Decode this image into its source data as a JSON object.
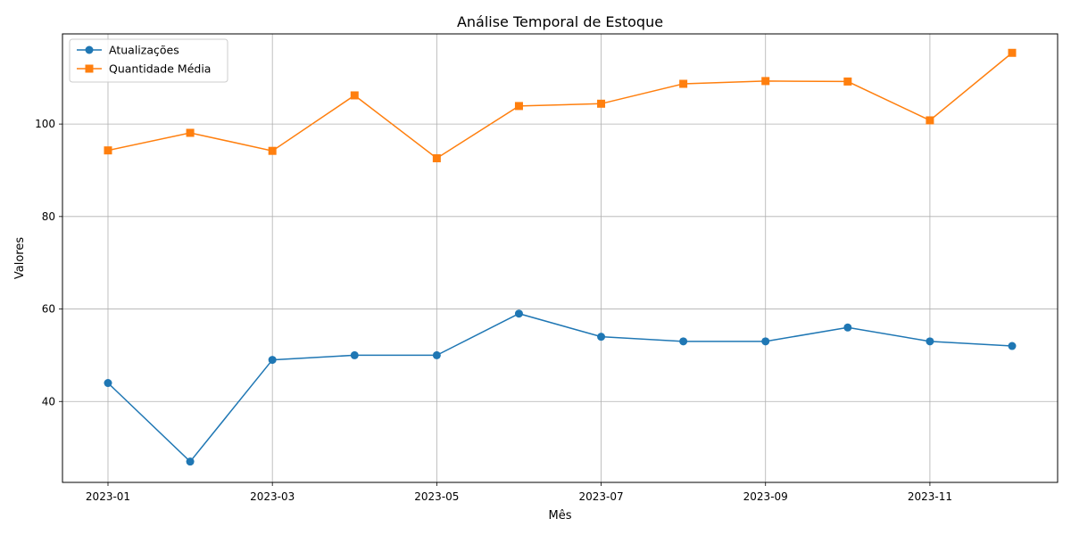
{
  "chart_data": {
    "type": "line",
    "title": "Análise Temporal de Estoque",
    "xlabel": "Mês",
    "ylabel": "Valores",
    "x": [
      "2023-01",
      "2023-02",
      "2023-03",
      "2023-04",
      "2023-05",
      "2023-06",
      "2023-07",
      "2023-08",
      "2023-09",
      "2023-10",
      "2023-11",
      "2023-12"
    ],
    "x_ticks": [
      "2023-01",
      "2023-03",
      "2023-05",
      "2023-07",
      "2023-09",
      "2023-11"
    ],
    "y_ticks": [
      40,
      60,
      80,
      100
    ],
    "ylim": [
      22.5,
      119.5
    ],
    "grid": true,
    "legend_position": "upper-left",
    "series": [
      {
        "name": "Atualizações",
        "color": "#1f77b4",
        "marker": "circle",
        "values": [
          44,
          27,
          49,
          50,
          50,
          59,
          54,
          53,
          53,
          56,
          53,
          52
        ]
      },
      {
        "name": "Quantidade Média",
        "color": "#ff7f0e",
        "marker": "square",
        "values": [
          94.3,
          98.1,
          94.2,
          106.2,
          92.6,
          103.9,
          104.4,
          108.7,
          109.3,
          109.2,
          100.8,
          115.4
        ]
      }
    ]
  }
}
